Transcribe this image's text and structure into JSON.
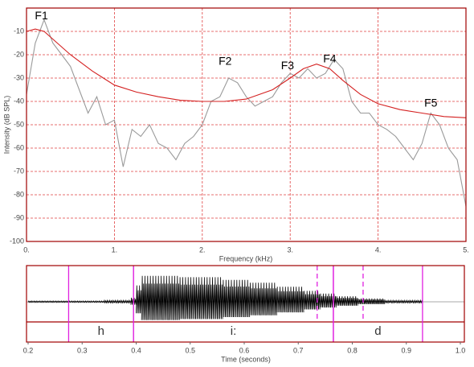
{
  "chart_data": [
    {
      "type": "line",
      "xlabel": "Frequency (kHz)",
      "ylabel": "Intensity (dB SPL)",
      "xlim": [
        0,
        5
      ],
      "ylim": [
        -100,
        0
      ],
      "xticks": [
        {
          "value": 0,
          "label": "0."
        },
        {
          "value": 1,
          "label": "1."
        },
        {
          "value": 2,
          "label": "2."
        },
        {
          "value": 3,
          "label": "3."
        },
        {
          "value": 4,
          "label": "4."
        },
        {
          "value": 5,
          "label": "5."
        }
      ],
      "yticks": [
        -100,
        -90,
        -80,
        -70,
        -60,
        -50,
        -40,
        -30,
        -20,
        -10
      ],
      "grid": true,
      "series": [
        {
          "color": "#9a9a9a",
          "x": [
            0,
            0.1,
            0.2,
            0.3,
            0.4,
            0.5,
            0.6,
            0.7,
            0.8,
            0.9,
            1.0,
            1.1,
            1.2,
            1.3,
            1.4,
            1.5,
            1.6,
            1.7,
            1.8,
            1.9,
            2.0,
            2.1,
            2.2,
            2.3,
            2.4,
            2.5,
            2.6,
            2.7,
            2.8,
            2.9,
            3.0,
            3.1,
            3.2,
            3.3,
            3.4,
            3.5,
            3.6,
            3.7,
            3.8,
            3.9,
            4.0,
            4.1,
            4.2,
            4.3,
            4.4,
            4.5,
            4.6,
            4.7,
            4.8,
            4.9,
            5.0
          ],
          "values": [
            -37,
            -15,
            -5,
            -15,
            -20,
            -25,
            -35,
            -45,
            -38,
            -50,
            -48,
            -68,
            -52,
            -55,
            -50,
            -58,
            -60,
            -65,
            -58,
            -55,
            -50,
            -40,
            -38,
            -30,
            -32,
            -38,
            -42,
            -40,
            -38,
            -32,
            -28,
            -30,
            -26,
            -30,
            -28,
            -22,
            -26,
            -40,
            -45,
            -45,
            -50,
            -52,
            -55,
            -60,
            -65,
            -58,
            -45,
            -50,
            -60,
            -65,
            -85
          ]
        },
        {
          "color": "#d42020",
          "x": [
            0,
            0.1,
            0.2,
            0.35,
            0.5,
            0.75,
            1.0,
            1.25,
            1.5,
            1.75,
            2.0,
            2.25,
            2.5,
            2.8,
            3.0,
            3.15,
            3.3,
            3.45,
            3.6,
            3.8,
            4.0,
            4.25,
            4.5,
            4.75,
            5.0
          ],
          "values": [
            -10,
            -9,
            -10,
            -15,
            -20,
            -27,
            -33,
            -36,
            -38,
            -39.5,
            -40,
            -40,
            -39,
            -35,
            -30,
            -26,
            -24,
            -26,
            -31,
            -37,
            -41,
            -43.5,
            -45,
            -46.5,
            -47
          ]
        }
      ],
      "annotations": [
        {
          "text": "F1",
          "x": 0.17,
          "y": -3.5
        },
        {
          "text": "F2",
          "x": 2.26,
          "y": -23
        },
        {
          "text": "F3",
          "x": 2.97,
          "y": -25
        },
        {
          "text": "F4",
          "x": 3.45,
          "y": -22
        },
        {
          "text": "F5",
          "x": 4.6,
          "y": -41
        }
      ]
    },
    {
      "type": "waveform",
      "xlabel": "Time (seconds)",
      "xlim": [
        0.2,
        1.0
      ],
      "xticks": [
        0.2,
        0.3,
        0.4,
        0.5,
        0.6,
        0.7,
        0.8,
        0.9,
        {
          "value": 1,
          "label": "1.0"
        }
      ],
      "t": [
        0.2,
        0.21,
        0.22,
        0.23,
        0.24,
        0.25,
        0.26,
        0.27,
        0.28,
        0.29,
        0.3,
        0.31,
        0.32,
        0.33,
        0.34,
        0.35,
        0.36,
        0.37,
        0.38,
        0.39,
        0.4,
        0.41,
        0.42,
        0.43,
        0.44,
        0.45,
        0.46,
        0.47,
        0.48,
        0.49,
        0.5,
        0.51,
        0.52,
        0.53,
        0.54,
        0.55,
        0.56,
        0.57,
        0.58,
        0.59,
        0.6,
        0.61,
        0.62,
        0.63,
        0.64,
        0.65,
        0.66,
        0.67,
        0.68,
        0.69,
        0.7,
        0.71,
        0.72,
        0.73,
        0.74,
        0.75,
        0.76,
        0.77,
        0.78,
        0.79,
        0.8,
        0.81,
        0.82,
        0.83,
        0.84,
        0.85,
        0.86,
        0.87,
        0.88,
        0.89,
        0.9,
        0.91,
        0.92
      ],
      "amplitude": [
        0.03,
        0.03,
        0.03,
        0.03,
        0.03,
        0.03,
        0.03,
        0.03,
        0.03,
        0.03,
        0.03,
        0.03,
        0.03,
        0.03,
        0.05,
        0.05,
        0.05,
        0.05,
        0.05,
        0.15,
        0.6,
        0.95,
        0.95,
        0.95,
        0.95,
        0.95,
        0.95,
        0.95,
        0.9,
        0.9,
        0.9,
        0.9,
        0.9,
        0.9,
        0.9,
        0.9,
        0.8,
        0.8,
        0.8,
        0.8,
        0.8,
        0.7,
        0.7,
        0.7,
        0.7,
        0.7,
        0.55,
        0.55,
        0.55,
        0.55,
        0.55,
        0.4,
        0.4,
        0.4,
        0.3,
        0.3,
        0.3,
        0.2,
        0.2,
        0.2,
        0.2,
        0.12,
        0.12,
        0.12,
        0.12,
        0.12,
        0.05,
        0.05,
        0.05,
        0.05,
        0.05,
        0.05,
        0.05
      ],
      "segments": [
        {
          "text": "h",
          "start": 0.275,
          "end": 0.395
        },
        {
          "text": "i:",
          "start": 0.395,
          "end": 0.765
        },
        {
          "text": "d",
          "start": 0.765,
          "end": 0.93
        }
      ],
      "dashed_boundaries": [
        0.735,
        0.82
      ]
    }
  ]
}
